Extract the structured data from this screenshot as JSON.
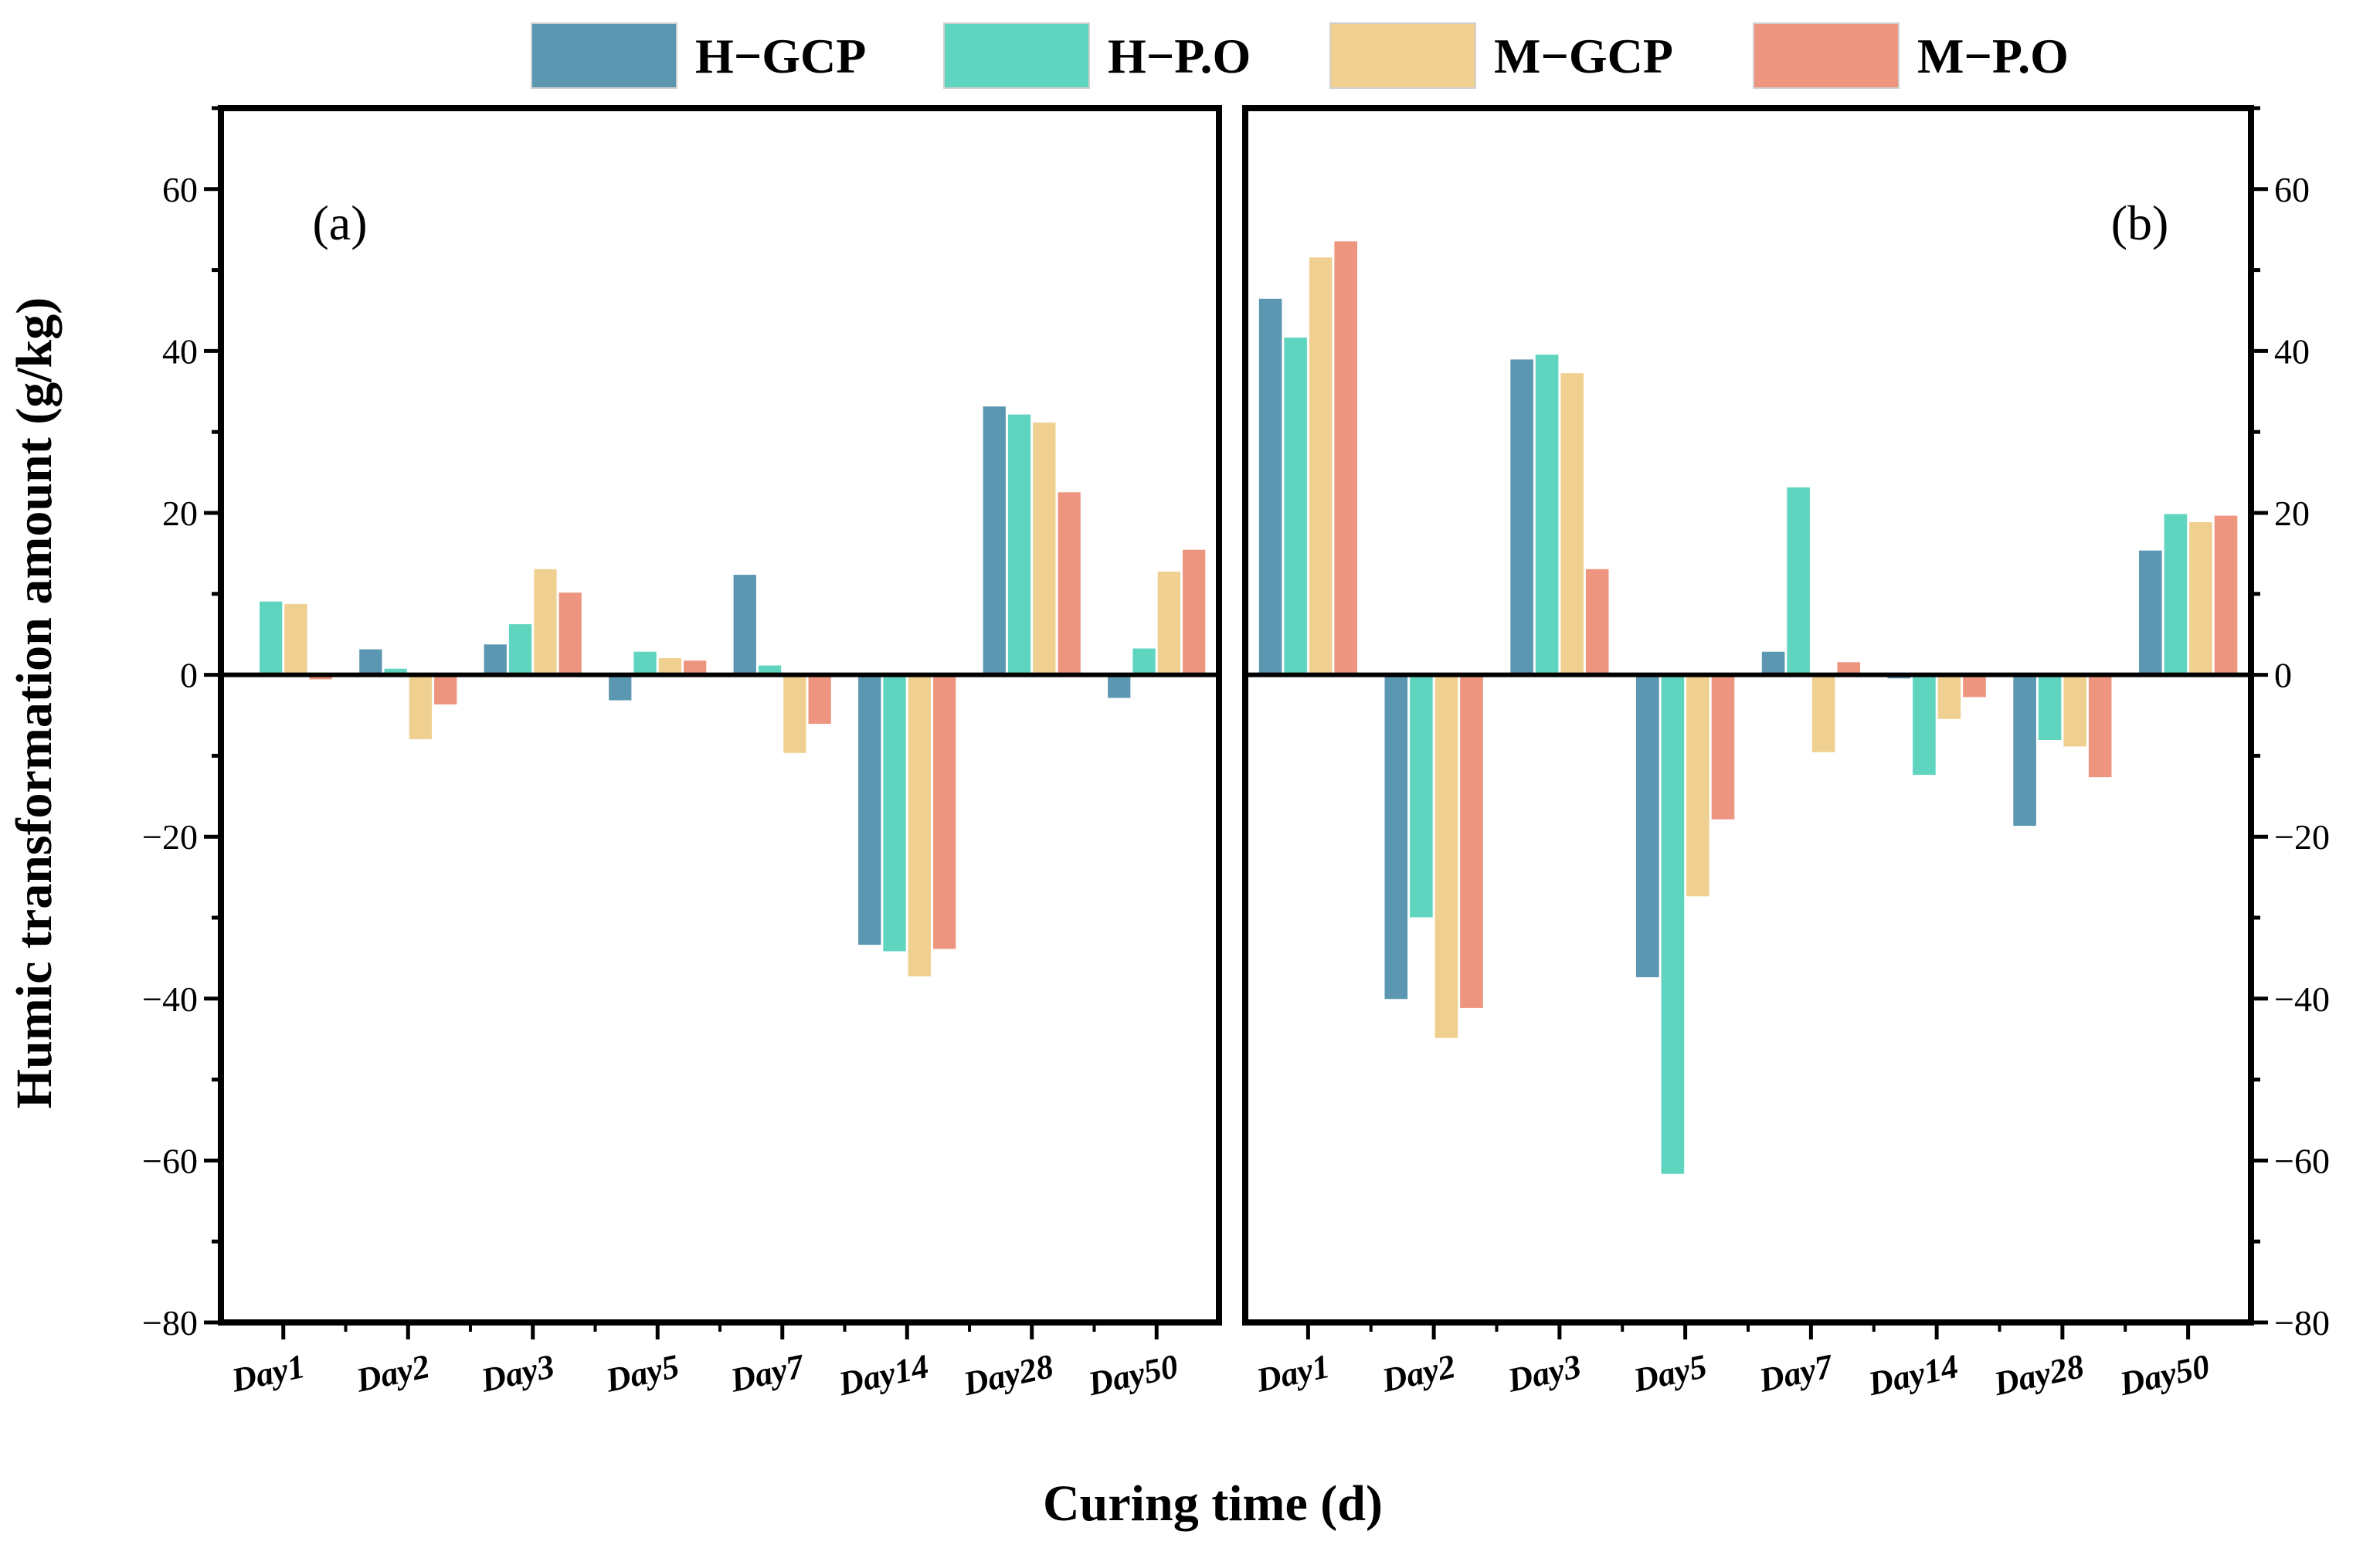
{
  "chart_data": {
    "type": "bar",
    "xlabel": "Curing time (d)",
    "ylabel": "Humic transformation amount (g/kg)",
    "ylim": [
      -80,
      70
    ],
    "yticks": [
      -80,
      -60,
      -40,
      -20,
      0,
      20,
      40,
      60
    ],
    "grid": false,
    "legend_position": "top",
    "categories": [
      "Day1",
      "Day2",
      "Day3",
      "Day5",
      "Day7",
      "Day14",
      "Day28",
      "Day50"
    ],
    "legend": [
      {
        "name": "H−GCP",
        "color": "#5b97b1"
      },
      {
        "name": "H−P.O",
        "color": "#5fd5c0"
      },
      {
        "name": "M−GCP",
        "color": "#f0d090"
      },
      {
        "name": "M−P.O",
        "color": "#ee9580"
      }
    ],
    "panels": [
      {
        "label": "(a)",
        "series": [
          {
            "name": "H−GCP",
            "values": [
              -0.3,
              3.2,
              3.8,
              -3.2,
              12.4,
              -33.4,
              33.2,
              -2.9
            ]
          },
          {
            "name": "H−P.O",
            "values": [
              9.1,
              0.8,
              6.3,
              2.9,
              1.2,
              -34.2,
              32.2,
              3.3
            ]
          },
          {
            "name": "M−GCP",
            "values": [
              8.8,
              -8.0,
              13.1,
              2.1,
              -9.7,
              -37.3,
              31.2,
              12.8
            ]
          },
          {
            "name": "M−P.O",
            "values": [
              -0.6,
              -3.7,
              10.2,
              1.8,
              -6.1,
              -33.9,
              22.6,
              15.5
            ]
          }
        ]
      },
      {
        "label": "(b)",
        "series": [
          {
            "name": "H−GCP",
            "values": [
              46.5,
              -40.1,
              39.0,
              -37.4,
              2.9,
              -0.5,
              -18.7,
              15.4
            ]
          },
          {
            "name": "H−P.O",
            "values": [
              41.7,
              -30.0,
              39.6,
              -61.7,
              23.2,
              -12.4,
              -8.1,
              19.9
            ]
          },
          {
            "name": "M−GCP",
            "values": [
              51.6,
              -44.9,
              37.3,
              -27.4,
              -9.6,
              -5.5,
              -8.9,
              18.9
            ]
          },
          {
            "name": "M−P.O",
            "values": [
              53.6,
              -41.2,
              13.1,
              -17.9,
              1.6,
              -2.8,
              -12.7,
              19.7
            ]
          }
        ]
      }
    ]
  }
}
